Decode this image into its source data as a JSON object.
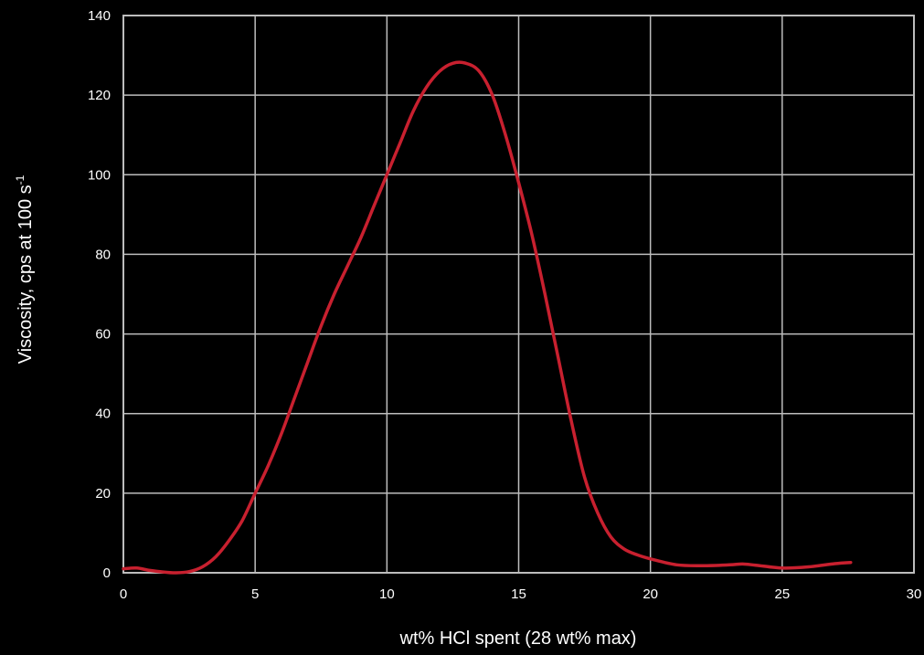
{
  "chart_data": {
    "type": "line",
    "title": "",
    "xlabel": "wt% HCl spent (28 wt% max)",
    "ylabel": {
      "main": "Viscosity, cps at 100 s",
      "superscript": "-1"
    },
    "xlim": [
      0,
      30
    ],
    "ylim": [
      0,
      140
    ],
    "x_ticks": [
      0,
      5,
      10,
      15,
      20,
      25,
      30
    ],
    "y_ticks": [
      0,
      20,
      40,
      60,
      80,
      100,
      120,
      140
    ],
    "grid": true,
    "colors": {
      "background": "#000000",
      "grid": "#bdbdbd",
      "series": "#c8202f",
      "text": "#ffffff"
    },
    "series": [
      {
        "values": [
          [
            0,
            1
          ],
          [
            0.5,
            1.2
          ],
          [
            1,
            0.6
          ],
          [
            1.5,
            0.2
          ],
          [
            2,
            0
          ],
          [
            2.5,
            0.3
          ],
          [
            3,
            1.5
          ],
          [
            3.5,
            4
          ],
          [
            4,
            8
          ],
          [
            4.5,
            13
          ],
          [
            5,
            20
          ],
          [
            5.5,
            27
          ],
          [
            6,
            35
          ],
          [
            6.5,
            44
          ],
          [
            7,
            53
          ],
          [
            7.5,
            62
          ],
          [
            8,
            70
          ],
          [
            8.5,
            77
          ],
          [
            9,
            84
          ],
          [
            9.5,
            92
          ],
          [
            10,
            100
          ],
          [
            10.5,
            108
          ],
          [
            11,
            116
          ],
          [
            11.5,
            122
          ],
          [
            12,
            126
          ],
          [
            12.5,
            128
          ],
          [
            13,
            128
          ],
          [
            13.5,
            126
          ],
          [
            14,
            120
          ],
          [
            14.5,
            110
          ],
          [
            15,
            98
          ],
          [
            15.5,
            85
          ],
          [
            16,
            70
          ],
          [
            16.5,
            54
          ],
          [
            17,
            38
          ],
          [
            17.5,
            24
          ],
          [
            18,
            15
          ],
          [
            18.5,
            9
          ],
          [
            19,
            6
          ],
          [
            19.5,
            4.5
          ],
          [
            20,
            3.5
          ],
          [
            21,
            2
          ],
          [
            22,
            1.8
          ],
          [
            23,
            2
          ],
          [
            23.5,
            2.2
          ],
          [
            24,
            1.9
          ],
          [
            25,
            1.2
          ],
          [
            26,
            1.5
          ],
          [
            27,
            2.3
          ],
          [
            27.6,
            2.6
          ]
        ]
      }
    ]
  }
}
